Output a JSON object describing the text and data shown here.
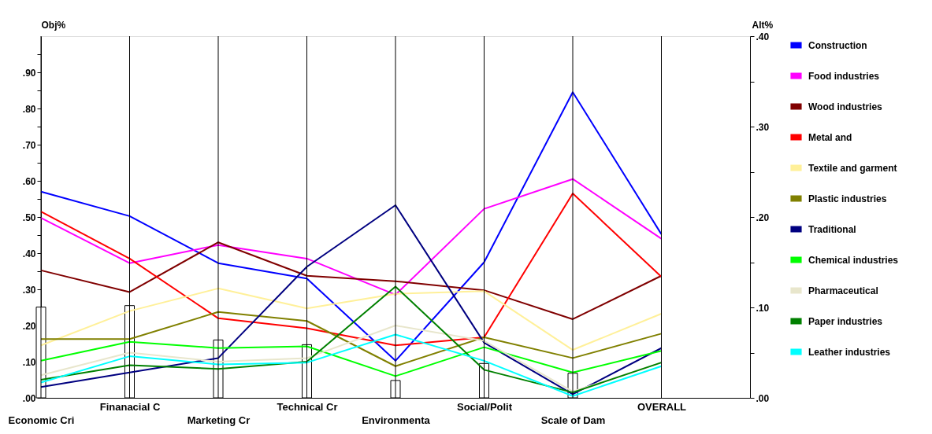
{
  "chart_data": {
    "type": "line",
    "categories": [
      "Economic Cri",
      "Finanacial C",
      "Marketing Cr",
      "Technical Cr",
      "Environmenta",
      "Social/Polit",
      "Scale of Dam",
      "OVERALL"
    ],
    "ylabel": "Obj%",
    "y2label": "Alt%",
    "ylim": [
      0,
      1.0
    ],
    "y2lim": [
      0,
      0.4
    ],
    "yticks": [
      {
        "value": 0,
        "label": ".00"
      },
      {
        "value": 0.05,
        "label": null
      },
      {
        "value": 0.1,
        "label": ".10"
      },
      {
        "value": 0.15,
        "label": null
      },
      {
        "value": 0.2,
        "label": ".20"
      },
      {
        "value": 0.25,
        "label": null
      },
      {
        "value": 0.3,
        "label": ".30"
      },
      {
        "value": 0.35,
        "label": null
      },
      {
        "value": 0.4,
        "label": ".40"
      },
      {
        "value": 0.45,
        "label": null
      },
      {
        "value": 0.5,
        "label": ".50"
      },
      {
        "value": 0.55,
        "label": null
      },
      {
        "value": 0.6,
        "label": ".60"
      },
      {
        "value": 0.65,
        "label": null
      },
      {
        "value": 0.7,
        "label": ".70"
      },
      {
        "value": 0.75,
        "label": null
      },
      {
        "value": 0.8,
        "label": ".80"
      },
      {
        "value": 0.85,
        "label": null
      },
      {
        "value": 0.9,
        "label": ".90"
      },
      {
        "value": 0.95,
        "label": null
      }
    ],
    "y2ticks": [
      {
        "value": 0,
        "label": ".00"
      },
      {
        "value": 0.05,
        "label": null
      },
      {
        "value": 0.1,
        "label": ".10"
      },
      {
        "value": 0.15,
        "label": null
      },
      {
        "value": 0.2,
        "label": ".20"
      },
      {
        "value": 0.25,
        "label": null
      },
      {
        "value": 0.3,
        "label": ".30"
      },
      {
        "value": 0.35,
        "label": null
      },
      {
        "value": 0.4,
        "label": ".40"
      }
    ],
    "grid": "x",
    "legend": "right",
    "series": [
      {
        "type": "bar",
        "axis": "y",
        "color": "#ffffff",
        "values": [
          0.251,
          0.255,
          0.16,
          0.147,
          0.048,
          0.095,
          0.068,
          null
        ]
      },
      {
        "name": "Construction",
        "axis": "y2",
        "color": "#0000ff",
        "values": [
          0.228,
          0.201,
          0.149,
          0.132,
          0.041,
          0.15,
          0.338,
          0.181
        ]
      },
      {
        "name": "Food industries",
        "axis": "y2",
        "color": "#ff00ff",
        "values": [
          0.199,
          0.149,
          0.169,
          0.154,
          0.114,
          0.209,
          0.242,
          0.176
        ]
      },
      {
        "name": "Wood industries",
        "axis": "y2",
        "color": "#800000",
        "values": [
          0.141,
          0.117,
          0.172,
          0.135,
          0.129,
          0.119,
          0.087,
          0.135
        ]
      },
      {
        "name": "Metal and",
        "axis": "y2",
        "color": "#ff0000",
        "values": [
          0.206,
          0.154,
          0.088,
          0.077,
          0.058,
          0.067,
          0.226,
          0.134
        ]
      },
      {
        "name": "Textile and garment",
        "axis": "y2",
        "color": "#fff099",
        "values": [
          0.058,
          0.096,
          0.121,
          0.099,
          0.115,
          0.118,
          0.053,
          0.093
        ]
      },
      {
        "name": "Plastic industries",
        "axis": "y2",
        "color": "#808000",
        "values": [
          0.065,
          0.065,
          0.095,
          0.085,
          0.035,
          0.067,
          0.044,
          0.071
        ]
      },
      {
        "name": "Traditional",
        "axis": "y2",
        "color": "#000080",
        "values": [
          0.012,
          0.028,
          0.044,
          0.145,
          0.213,
          0.061,
          0.004,
          0.055
        ]
      },
      {
        "name": "Chemical industries",
        "axis": "y2",
        "color": "#00ff00",
        "values": [
          0.041,
          0.062,
          0.055,
          0.057,
          0.024,
          0.056,
          0.028,
          0.052
        ]
      },
      {
        "name": "Pharmaceutical",
        "axis": "y2",
        "color": "#e8e6cc",
        "values": [
          0.025,
          0.05,
          0.04,
          0.044,
          0.08,
          0.063,
          0.007,
          0.039
        ]
      },
      {
        "name": "Paper industries",
        "axis": "y2",
        "color": "#008000",
        "values": [
          0.02,
          0.036,
          0.032,
          0.04,
          0.123,
          0.031,
          0.006,
          0.039
        ]
      },
      {
        "name": "Leather industries",
        "axis": "y2",
        "color": "#00ffff",
        "values": [
          0.017,
          0.046,
          0.037,
          0.039,
          0.07,
          0.041,
          0.002,
          0.035
        ]
      }
    ]
  }
}
